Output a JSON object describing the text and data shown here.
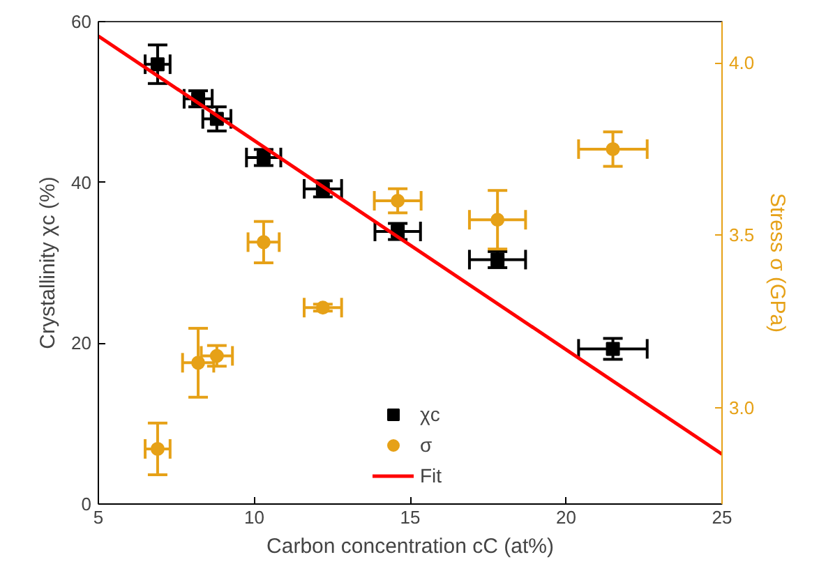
{
  "chart_data": {
    "type": "scatter",
    "xlabel": "Carbon concentration cC (at%)",
    "ylabel": "Crystallinity χc (%)",
    "y2label": "Stress σ (GPa)",
    "xlim": [
      5,
      25
    ],
    "xticks": [
      5,
      10,
      15,
      20,
      25
    ],
    "ylim": [
      0,
      60
    ],
    "yticks": [
      0,
      20,
      40,
      60
    ],
    "y2lim": [
      2.72,
      4.12
    ],
    "y2ticks": [
      {
        "value": 3.0,
        "label": "3.0"
      },
      {
        "value": 3.5,
        "label": "3.5"
      },
      {
        "value": 4.0,
        "label": "4.0"
      }
    ],
    "grid": false,
    "legend": "bottom",
    "series": [
      {
        "name": "χc",
        "marker": "square",
        "color": "#000000",
        "x": [
          6.9,
          8.2,
          8.8,
          10.3,
          12.2,
          14.6,
          17.8,
          21.5
        ],
        "values": [
          54.7,
          50.4,
          47.9,
          43.1,
          39.2,
          33.9,
          30.4,
          19.3
        ],
        "errors": [
          2.4,
          1,
          1.5,
          1,
          1,
          1,
          1,
          1.3
        ],
        "xerrors": [
          0.4,
          0.45,
          0.45,
          0.55,
          0.6,
          0.73,
          0.9,
          1.1
        ]
      },
      {
        "name": "σ",
        "marker": "circle",
        "axis": "y2",
        "color": "#e6a117",
        "x": [
          6.9,
          8.2,
          8.8,
          10.3,
          12.2,
          14.6,
          17.8,
          21.5
        ],
        "values": [
          2.88,
          3.13,
          3.15,
          3.48,
          3.29,
          3.6,
          3.545,
          3.75
        ],
        "errors": [
          0.075,
          0.1,
          0.03,
          0.06,
          0.01,
          0.035,
          0.085,
          0.05
        ],
        "xerrors": [
          0.4,
          0.5,
          0.5,
          0.5,
          0.6,
          0.75,
          0.9,
          1.1
        ]
      },
      {
        "name": "Fit",
        "type": "line",
        "line_style": "solid",
        "color": "#ff0000",
        "x": [
          5,
          25
        ],
        "values": [
          58.2,
          6.2
        ]
      }
    ]
  }
}
